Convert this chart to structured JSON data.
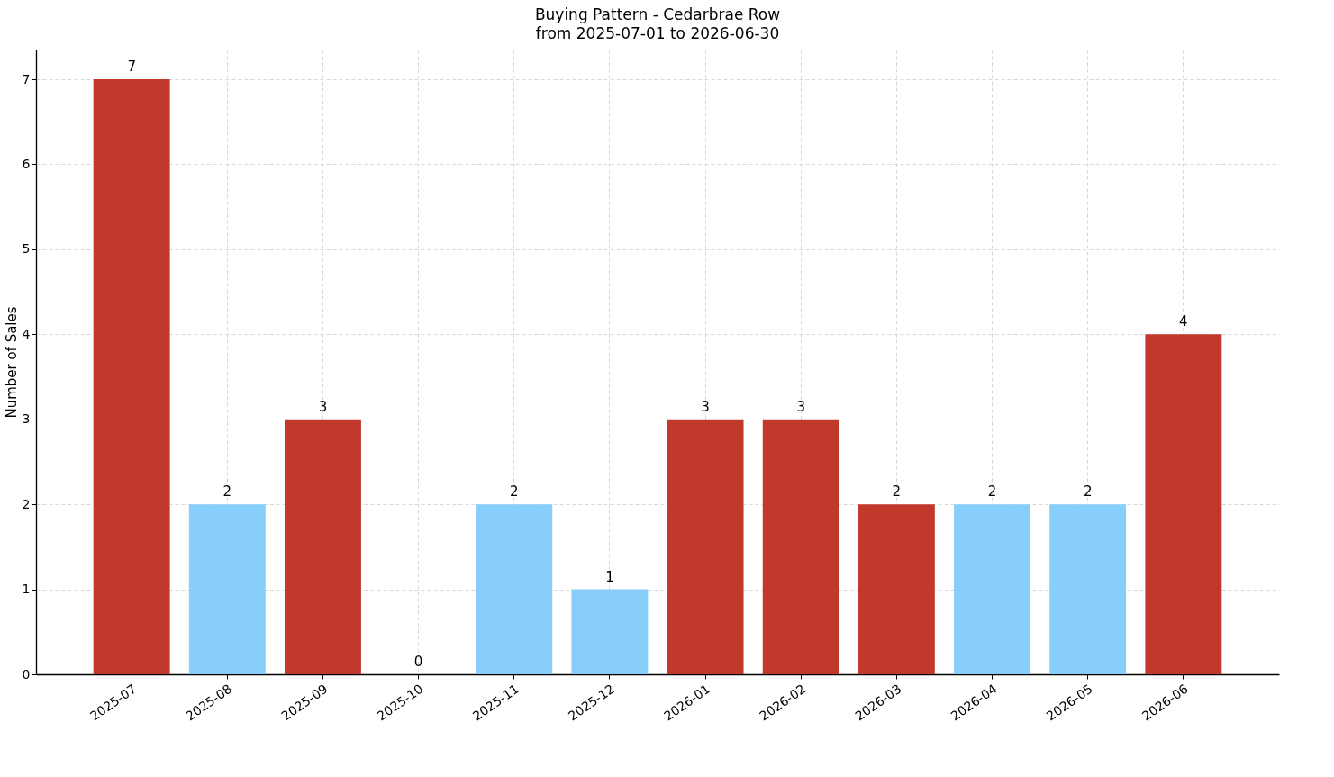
{
  "chart_data": {
    "type": "bar",
    "title": "Buying Pattern - Cedarbrae Row",
    "subtitle": "from 2025-07-01 to 2026-06-30",
    "ylabel": "Number of Sales",
    "categories": [
      "2025-07",
      "2025-08",
      "2025-09",
      "2025-10",
      "2025-11",
      "2025-12",
      "2026-01",
      "2026-02",
      "2026-03",
      "2026-04",
      "2026-05",
      "2026-06"
    ],
    "values": [
      7,
      2,
      3,
      0,
      2,
      1,
      3,
      3,
      2,
      2,
      2,
      4
    ],
    "colors": [
      "#c0392b",
      "#87cefa",
      "#c0392b",
      "#87cefa",
      "#87cefa",
      "#87cefa",
      "#c0392b",
      "#c0392b",
      "#c0392b",
      "#87cefa",
      "#87cefa",
      "#c0392b"
    ],
    "ylim": [
      0,
      7.35
    ],
    "yticks": [
      0,
      1,
      2,
      3,
      4,
      5,
      6,
      7
    ],
    "grid": true,
    "data_labels": true
  }
}
